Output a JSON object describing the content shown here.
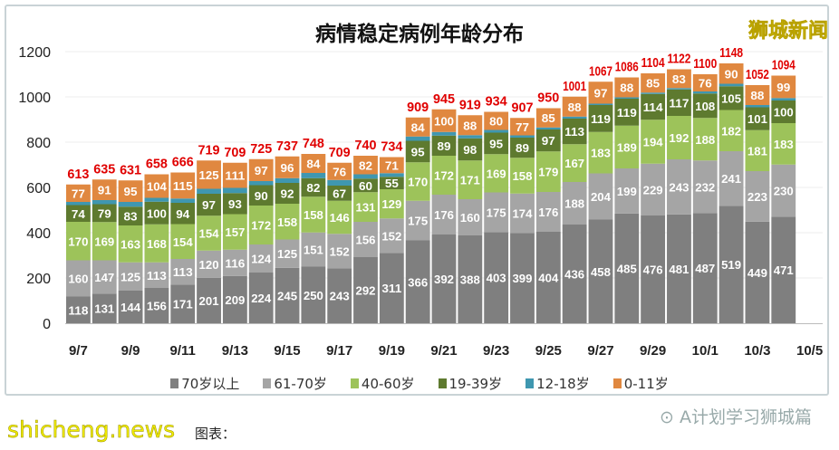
{
  "chart_data": {
    "type": "bar",
    "stacked": true,
    "title": "病情稳定病例年龄分布",
    "categories": [
      "9/7",
      "9/8",
      "9/9",
      "9/10",
      "9/11",
      "9/12",
      "9/13",
      "9/14",
      "9/15",
      "9/16",
      "9/17",
      "9/18",
      "9/19",
      "9/20",
      "9/21",
      "9/22",
      "9/23",
      "9/24",
      "9/25",
      "9/26",
      "9/27",
      "9/28",
      "9/29",
      "9/30",
      "10/1",
      "10/2",
      "10/3",
      "10/4",
      "10/5"
    ],
    "xtick_labels": [
      "9/7",
      "9/9",
      "9/11",
      "9/13",
      "9/15",
      "9/17",
      "9/19",
      "9/21",
      "9/23",
      "9/25",
      "9/27",
      "9/29",
      "10/1",
      "10/3",
      "10/5"
    ],
    "ylim": [
      0,
      1200
    ],
    "yticks": [
      0,
      200,
      400,
      600,
      800,
      1000,
      1200
    ],
    "grid": true,
    "legend_position": "bottom",
    "series": [
      {
        "name": "70岁以上",
        "color": "#7f7f7f",
        "labeled": true,
        "values": [
          118,
          131,
          144,
          156,
          171,
          201,
          209,
          224,
          245,
          250,
          243,
          292,
          311,
          366,
          392,
          388,
          403,
          399,
          404,
          436,
          458,
          485,
          476,
          481,
          487,
          519,
          449,
          471,
          null
        ]
      },
      {
        "name": "61-70岁",
        "color": "#a5a5a5",
        "labeled": true,
        "values": [
          160,
          147,
          125,
          113,
          113,
          120,
          116,
          124,
          125,
          151,
          152,
          156,
          152,
          175,
          176,
          160,
          175,
          174,
          176,
          188,
          204,
          199,
          229,
          243,
          232,
          241,
          223,
          230,
          null
        ]
      },
      {
        "name": "40-60岁",
        "color": "#9dc35a",
        "labeled": true,
        "values": [
          170,
          169,
          163,
          168,
          154,
          154,
          157,
          172,
          158,
          158,
          146,
          131,
          129,
          170,
          172,
          171,
          169,
          158,
          179,
          167,
          183,
          189,
          194,
          192,
          188,
          182,
          181,
          183,
          null
        ]
      },
      {
        "name": "19-39岁",
        "color": "#5e7a2f",
        "labeled": true,
        "values": [
          74,
          79,
          83,
          100,
          94,
          97,
          93,
          90,
          92,
          82,
          67,
          60,
          55,
          95,
          89,
          98,
          95,
          89,
          97,
          113,
          119,
          119,
          114,
          117,
          108,
          105,
          101,
          100,
          null
        ]
      },
      {
        "name": "12-18岁",
        "color": "#3f97b0",
        "labeled": false,
        "values": [
          14,
          18,
          21,
          17,
          19,
          22,
          23,
          18,
          21,
          23,
          25,
          19,
          16,
          19,
          16,
          14,
          12,
          10,
          9,
          9,
          6,
          6,
          6,
          6,
          9,
          11,
          10,
          11,
          null
        ]
      },
      {
        "name": "0-11岁",
        "color": "#e08840",
        "labeled": true,
        "values": [
          77,
          91,
          95,
          104,
          115,
          125,
          111,
          97,
          96,
          84,
          76,
          82,
          71,
          84,
          100,
          88,
          80,
          77,
          85,
          88,
          97,
          88,
          85,
          83,
          76,
          90,
          88,
          99,
          null
        ]
      }
    ],
    "totals": [
      613,
      635,
      631,
      658,
      666,
      719,
      709,
      725,
      737,
      748,
      709,
      740,
      734,
      909,
      945,
      919,
      934,
      907,
      950,
      1001,
      1067,
      1086,
      1104,
      1122,
      1100,
      1148,
      1052,
      1094,
      null
    ],
    "total_label_color": "#e00000"
  },
  "watermarks": {
    "top_right": "狮城新闻",
    "bottom_left": "shicheng.news",
    "wechat": "A计划学习狮城篇"
  },
  "source_label": "图表："
}
